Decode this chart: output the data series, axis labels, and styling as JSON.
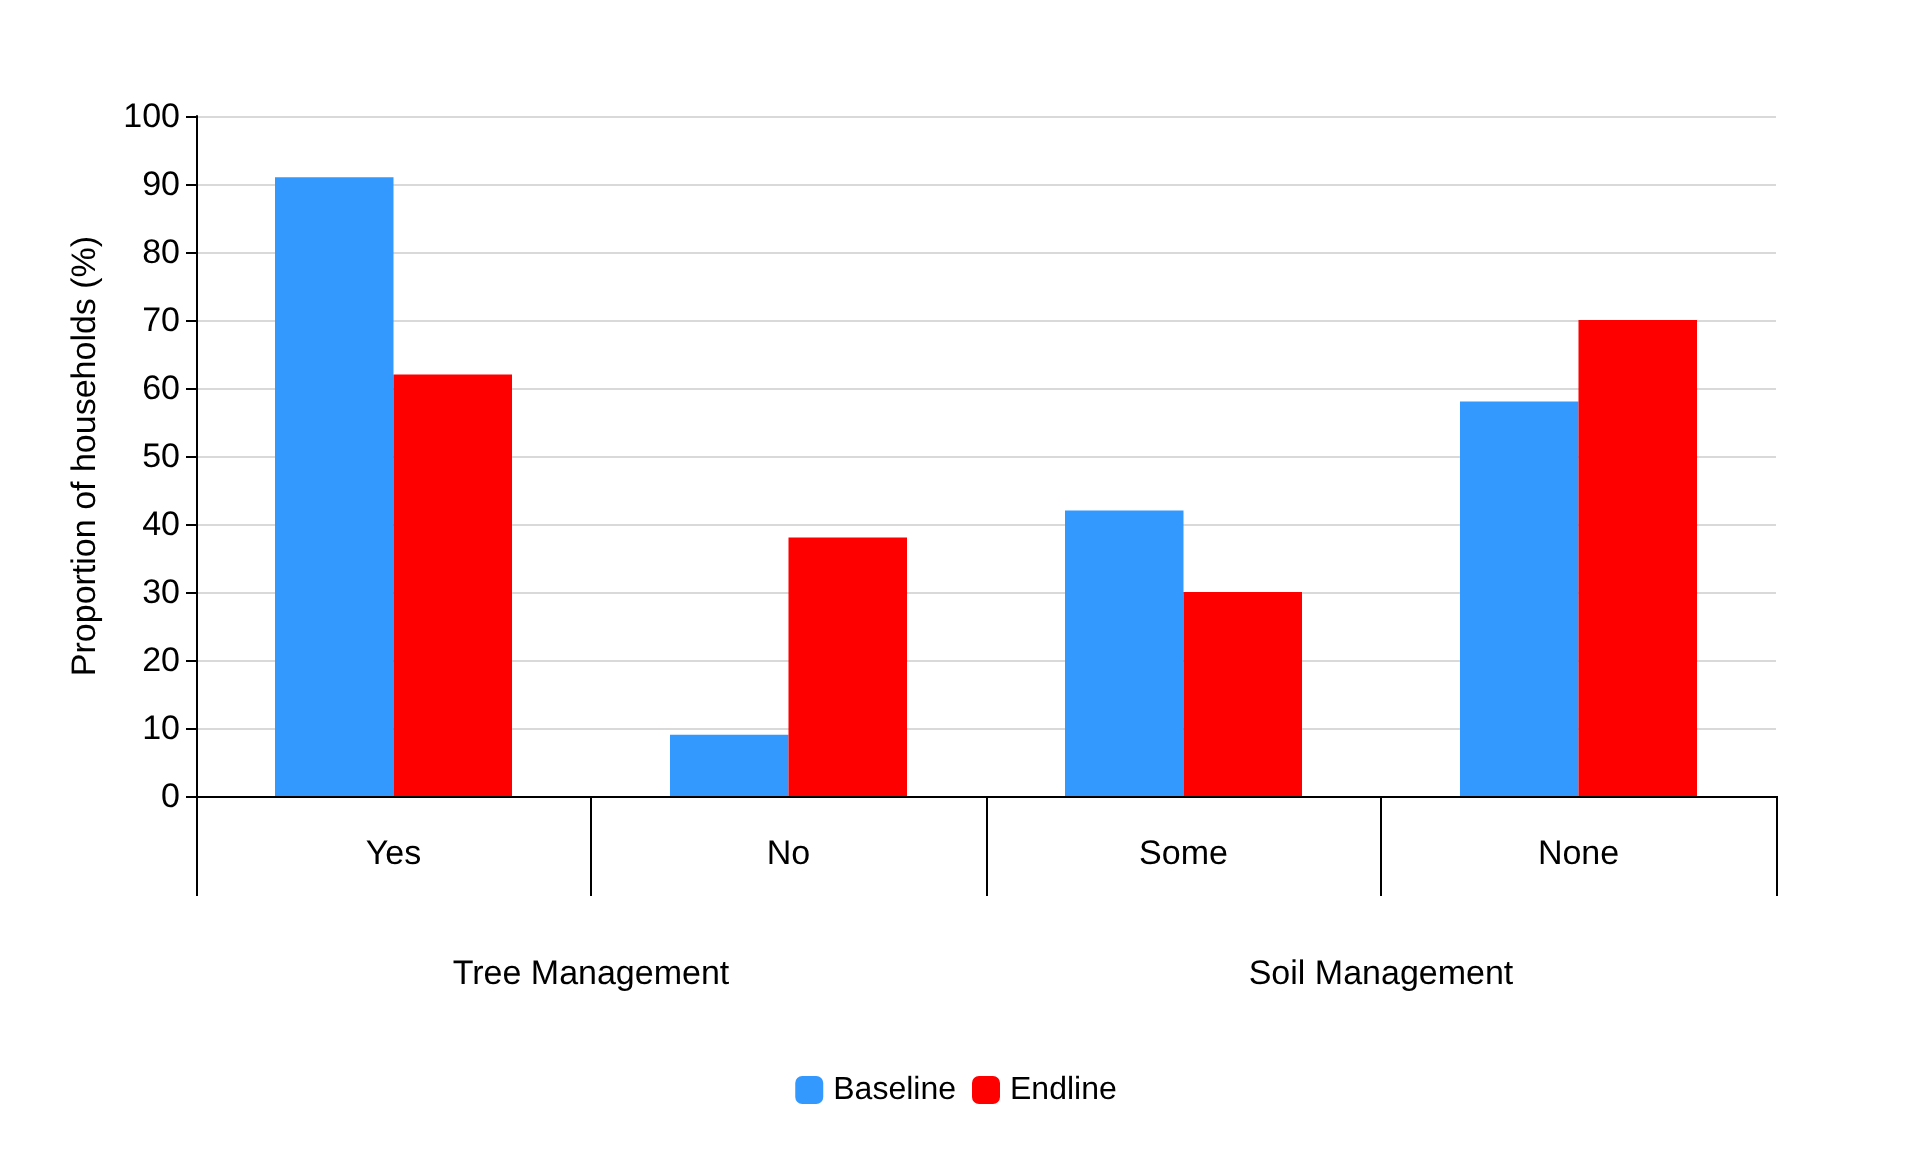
{
  "chart_data": {
    "type": "bar",
    "ylabel": "Proportion of households (%)",
    "categories": [
      "Yes",
      "No",
      "Some",
      "None"
    ],
    "series": [
      {
        "name": "Baseline",
        "color": "#3399ff",
        "values": [
          91,
          9,
          42,
          58
        ]
      },
      {
        "name": "Endline",
        "color": "#ff0000",
        "values": [
          62,
          38,
          30,
          70
        ]
      }
    ],
    "ylim": [
      0,
      100
    ],
    "yticks": [
      0,
      10,
      20,
      30,
      40,
      50,
      60,
      70,
      80,
      90,
      100
    ],
    "grid": "y",
    "legend": "bottom",
    "annotations": [
      "Tree Management",
      "Soil Management"
    ]
  }
}
